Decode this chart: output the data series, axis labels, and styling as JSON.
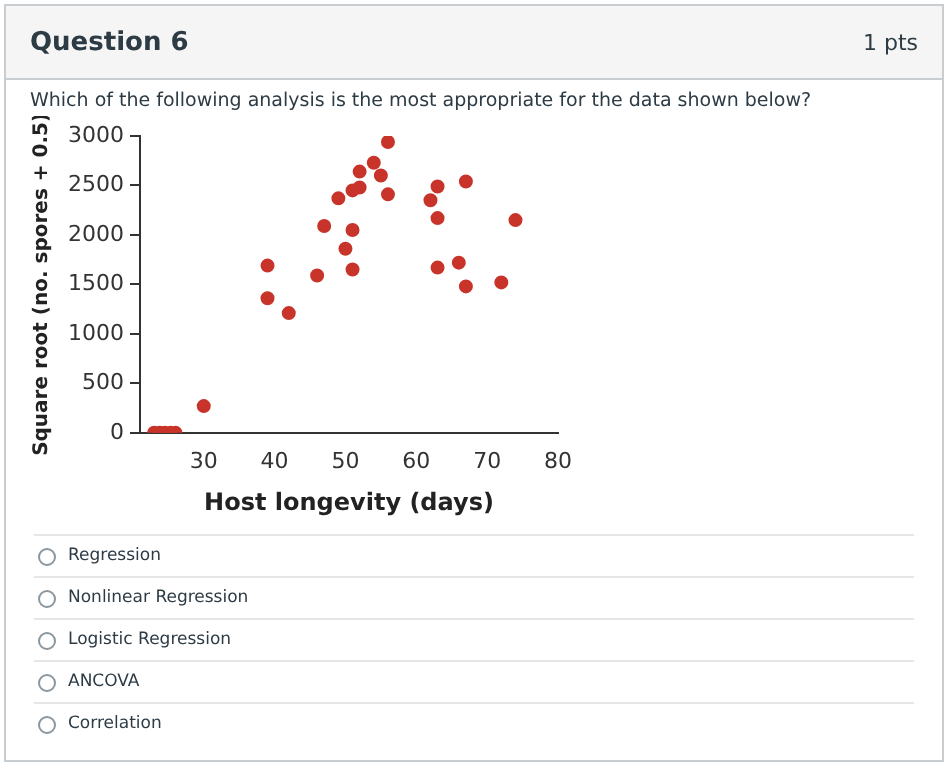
{
  "chart_data": {
    "type": "scatter",
    "xlabel": "Host longevity (days)",
    "ylabel": "Square root (no. spores + 0.5)",
    "annotations": [
      "Question 6",
      "1 pts",
      "Which of the following analysis is the most appropriate for the data shown below?",
      "Regression",
      "Nonlinear Regression",
      "Logistic Regression",
      "ANCOVA",
      "Correlation"
    ],
    "series": [
      {
        "color": "#c8342a",
        "x": [
          23,
          23.8,
          24.5,
          25.3,
          26,
          30,
          39,
          39,
          42,
          46,
          47,
          49,
          50,
          51,
          51,
          51,
          52,
          52,
          54,
          55,
          56,
          56,
          62,
          63,
          63,
          63,
          66,
          67,
          67,
          72,
          74
        ],
        "values": [
          0,
          0,
          0,
          0,
          0,
          270,
          1690,
          1360,
          1210,
          1590,
          2090,
          2370,
          1860,
          2050,
          1650,
          2450,
          2480,
          2640,
          2730,
          2600,
          2940,
          2410,
          2350,
          2490,
          2170,
          1670,
          1720,
          2540,
          1480,
          1520,
          2150
        ]
      }
    ],
    "xlim": [
      21,
      80
    ],
    "xticks": [
      30,
      40,
      50,
      60,
      70,
      80
    ],
    "ylim": [
      0,
      3000
    ],
    "yticks": [
      0,
      500,
      1000,
      1500,
      2000,
      2500,
      3000
    ],
    "grid": false,
    "legend": false,
    "marker": "circle"
  }
}
